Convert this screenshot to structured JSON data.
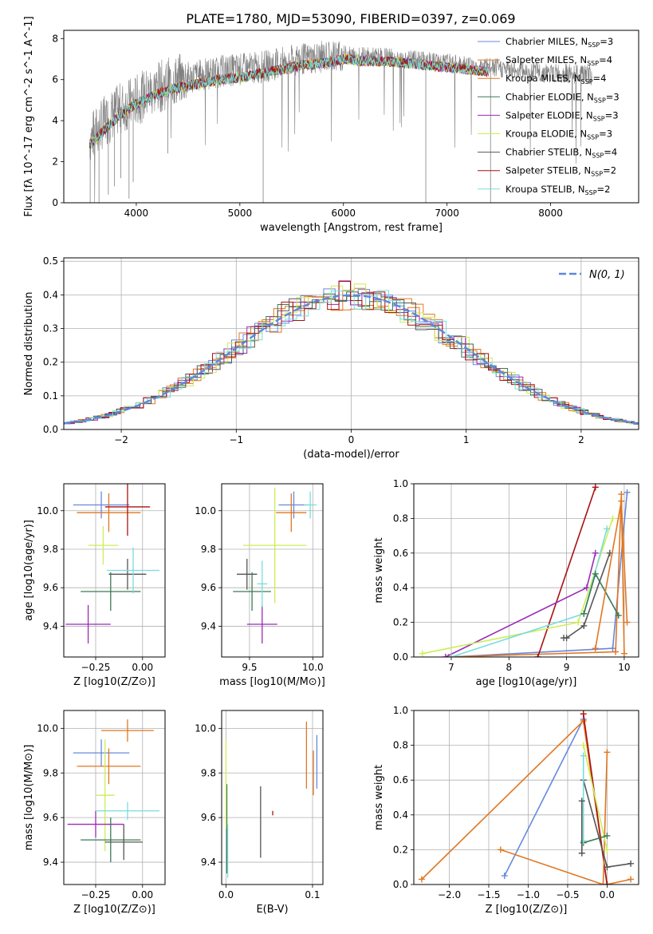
{
  "figure": {
    "title": "PLATE=1780, MJD=53090, FIBERID=0397, z=0.069"
  },
  "legend_colors": [
    "#6688dd",
    "#e07722",
    "#e07722",
    "#3a7a55",
    "#9a2ab8",
    "#ccee55",
    "#555555",
    "#aa1111",
    "#77dddd"
  ],
  "legend_labels": [
    "Chabrier MILES, N_SSP=3",
    "Salpeter MILES, N_SSP=4",
    "Kroupa MILES, N_SSP=4",
    "Chabrier ELODIE, N_SSP=3",
    "Salpeter ELODIE, N_SSP=3",
    "Kroupa ELODIE, N_SSP=3",
    "Chabrier STELIB, N_SSP=4",
    "Salpeter STELIB, N_SSP=2",
    "Kroupa STELIB, N_SSP=2"
  ],
  "chart_data": [
    {
      "id": "spectrum",
      "type": "line",
      "xlabel": "wavelength [Angstrom, rest frame]",
      "ylabel": "Flux [fλ 10^-17 erg cm^-2 s^-1 A^-1]",
      "xlim": [
        3300,
        8850
      ],
      "ylim": [
        0,
        8.4
      ],
      "xticks": [
        4000,
        5000,
        6000,
        7000,
        8000
      ],
      "yticks": [
        0,
        2,
        4,
        6,
        8
      ],
      "data_color": "#808080",
      "data_x": [
        3550,
        3700,
        3850,
        4000,
        4200,
        4400,
        4600,
        4800,
        5000,
        5200,
        5400,
        5600,
        5800,
        6000,
        6200,
        6400,
        6600,
        6800,
        7000,
        7200,
        7400,
        7600,
        7800,
        8000,
        8200,
        8400
      ],
      "data_y": [
        3.1,
        4.0,
        4.6,
        5.0,
        5.6,
        6.0,
        6.2,
        6.4,
        6.5,
        6.6,
        6.8,
        7.0,
        7.1,
        7.2,
        7.1,
        7.1,
        7.0,
        6.9,
        6.8,
        6.7,
        6.6,
        6.5,
        6.4,
        6.3,
        6.3,
        6.2
      ],
      "model_x": [
        3550,
        3700,
        3850,
        4000,
        4200,
        4400,
        4600,
        4800,
        5000,
        5200,
        5400,
        5600,
        5800,
        6000,
        6200,
        6400,
        6600,
        6800,
        7000,
        7200,
        7400
      ],
      "model_y": [
        2.8,
        3.6,
        4.3,
        4.8,
        5.3,
        5.6,
        5.8,
        6.0,
        6.1,
        6.3,
        6.5,
        6.7,
        6.8,
        7.0,
        6.9,
        6.9,
        6.8,
        6.7,
        6.6,
        6.5,
        6.4
      ],
      "legend_loc": "right"
    },
    {
      "id": "residuals",
      "type": "line",
      "xlabel": "(data-model)/error",
      "ylabel": "Normed distribution",
      "xlim": [
        -2.5,
        2.5
      ],
      "ylim": [
        0,
        0.51
      ],
      "xticks": [
        -2,
        -1,
        0,
        1,
        2
      ],
      "yticks": [
        0.0,
        0.1,
        0.2,
        0.3,
        0.4,
        0.5
      ],
      "legend": "N(0, 1)",
      "legend_loc": "top-right",
      "gaussian_color": "#5a88dd"
    },
    {
      "id": "age-vs-Z",
      "type": "scatter",
      "xlabel": "Z [log10(Z/Z⊙)]",
      "ylabel": "age [log10(age/yr)]",
      "xlim": [
        -0.42,
        0.12
      ],
      "ylim": [
        9.24,
        10.14
      ],
      "xticks": [
        -0.25,
        0.0
      ],
      "yticks": [
        9.4,
        9.6,
        9.8,
        10.0
      ],
      "points": [
        {
          "x": -0.22,
          "y": 10.03,
          "xerr": 0.15,
          "yerr": 0.07,
          "c": 0
        },
        {
          "x": -0.18,
          "y": 9.99,
          "xerr": 0.17,
          "yerr": 0.1,
          "c": 1
        },
        {
          "x": -0.08,
          "y": 10.02,
          "xerr": 0.12,
          "yerr": 0.15,
          "c": 7
        },
        {
          "x": -0.21,
          "y": 9.82,
          "xerr": 0.08,
          "yerr": 0.1,
          "c": 5
        },
        {
          "x": -0.29,
          "y": 9.41,
          "xerr": 0.12,
          "yerr": 0.1,
          "c": 4
        },
        {
          "x": -0.08,
          "y": 9.67,
          "xerr": 0.1,
          "yerr": 0.08,
          "c": 6
        },
        {
          "x": -0.17,
          "y": 9.58,
          "xerr": 0.16,
          "yerr": 0.1,
          "c": 3
        },
        {
          "x": -0.05,
          "y": 9.69,
          "xerr": 0.14,
          "yerr": 0.12,
          "c": 8
        }
      ]
    },
    {
      "id": "age-vs-mass",
      "type": "scatter",
      "xlabel": "mass [log10(M/M⊙)]",
      "ylabel": "",
      "xlim": [
        9.28,
        10.08
      ],
      "ylim": [
        9.24,
        10.14
      ],
      "xticks": [
        9.5,
        10.0
      ],
      "yticks": [
        9.4,
        9.6,
        9.8,
        10.0
      ],
      "points": [
        {
          "x": 9.85,
          "y": 10.03,
          "xerr": 0.12,
          "yerr": 0.07,
          "c": 0
        },
        {
          "x": 9.83,
          "y": 9.99,
          "xerr": 0.12,
          "yerr": 0.1,
          "c": 1
        },
        {
          "x": 9.98,
          "y": 10.03,
          "xerr": 0.05,
          "yerr": 0.07,
          "c": 8
        },
        {
          "x": 9.7,
          "y": 9.82,
          "xerr": 0.25,
          "yerr": 0.3,
          "c": 5
        },
        {
          "x": 9.6,
          "y": 9.41,
          "xerr": 0.12,
          "yerr": 0.1,
          "c": 4
        },
        {
          "x": 9.48,
          "y": 9.67,
          "xerr": 0.08,
          "yerr": 0.08,
          "c": 6
        },
        {
          "x": 9.52,
          "y": 9.58,
          "xerr": 0.15,
          "yerr": 0.1,
          "c": 3
        },
        {
          "x": 9.6,
          "y": 9.62,
          "xerr": 0.04,
          "yerr": 0.12,
          "c": 8
        }
      ]
    },
    {
      "id": "weight-vs-age",
      "type": "line",
      "xlabel": "age [log10(age/yr)]",
      "ylabel": "mass weight",
      "xlim": [
        6.35,
        10.25
      ],
      "ylim": [
        0.0,
        1.0
      ],
      "xticks": [
        7,
        8,
        9,
        10
      ],
      "yticks": [
        0.0,
        0.2,
        0.4,
        0.6,
        0.8,
        1.0
      ],
      "series": [
        {
          "c": 0,
          "x": [
            7.0,
            9.8,
            10.05
          ],
          "y": [
            0.0,
            0.05,
            0.95
          ]
        },
        {
          "c": 1,
          "x": [
            6.95,
            9.85,
            9.95,
            10.0
          ],
          "y": [
            0.0,
            0.03,
            0.94,
            0.02
          ]
        },
        {
          "c": 7,
          "x": [
            8.5,
            9.5
          ],
          "y": [
            0.0,
            0.98
          ]
        },
        {
          "c": 4,
          "x": [
            6.9,
            9.35,
            9.5
          ],
          "y": [
            0.0,
            0.4,
            0.6
          ]
        },
        {
          "c": 5,
          "x": [
            6.5,
            9.2,
            9.8
          ],
          "y": [
            0.02,
            0.2,
            0.8
          ]
        },
        {
          "c": 8,
          "x": [
            7.0,
            9.3,
            9.7
          ],
          "y": [
            0.0,
            0.25,
            0.74
          ]
        },
        {
          "c": 3,
          "x": [
            9.3,
            9.5,
            9.9
          ],
          "y": [
            0.25,
            0.48,
            0.24
          ]
        },
        {
          "c": 6,
          "x": [
            8.95,
            9.0,
            9.3,
            9.75
          ],
          "y": [
            0.11,
            0.11,
            0.18,
            0.6
          ]
        },
        {
          "c": 2,
          "x": [
            9.5,
            9.95,
            10.05
          ],
          "y": [
            0.05,
            0.9,
            0.2
          ]
        }
      ]
    },
    {
      "id": "mass-vs-Z",
      "type": "scatter",
      "xlabel": "Z [log10(Z/Z⊙)]",
      "ylabel": "mass [log10(M/M⊙)]",
      "xlim": [
        -0.42,
        0.12
      ],
      "ylim": [
        9.3,
        10.08
      ],
      "xticks": [
        -0.25,
        0.0
      ],
      "yticks": [
        9.4,
        9.6,
        9.8,
        10.0
      ],
      "points": [
        {
          "x": -0.22,
          "y": 9.89,
          "xerr": 0.15,
          "yerr": 0.06,
          "c": 0
        },
        {
          "x": -0.18,
          "y": 9.83,
          "xerr": 0.17,
          "yerr": 0.08,
          "c": 1
        },
        {
          "x": -0.08,
          "y": 9.99,
          "xerr": 0.14,
          "yerr": 0.05,
          "c": 2
        },
        {
          "x": -0.2,
          "y": 9.7,
          "xerr": 0.05,
          "yerr": 0.25,
          "c": 5
        },
        {
          "x": -0.25,
          "y": 9.57,
          "xerr": 0.15,
          "yerr": 0.06,
          "c": 4
        },
        {
          "x": -0.08,
          "y": 9.63,
          "xerr": 0.17,
          "yerr": 0.04,
          "c": 8
        },
        {
          "x": -0.17,
          "y": 9.5,
          "xerr": 0.16,
          "yerr": 0.1,
          "c": 3
        },
        {
          "x": -0.1,
          "y": 9.49,
          "xerr": 0.1,
          "yerr": 0.08,
          "c": 6
        }
      ]
    },
    {
      "id": "mass-vs-EBV",
      "type": "scatter",
      "xlabel": "E(B-V)",
      "ylabel": "",
      "xlim": [
        -0.005,
        0.112
      ],
      "ylim": [
        9.3,
        10.08
      ],
      "xticks": [
        0.0,
        0.1
      ],
      "yticks": [
        9.4,
        9.6,
        9.8,
        10.0
      ],
      "points": [
        {
          "x": 0.105,
          "y": 9.85,
          "xerr": 0.0,
          "yerr": 0.12,
          "c": 0
        },
        {
          "x": 0.101,
          "y": 9.8,
          "xerr": 0.0,
          "yerr": 0.1,
          "c": 1
        },
        {
          "x": 0.093,
          "y": 9.88,
          "xerr": 0.0,
          "yerr": 0.15,
          "c": 2
        },
        {
          "x": 0.04,
          "y": 9.58,
          "xerr": 0.0,
          "yerr": 0.16,
          "c": 6
        },
        {
          "x": 0.054,
          "y": 9.62,
          "xerr": 0.0,
          "yerr": 0.01,
          "c": 7
        },
        {
          "x": 0.001,
          "y": 9.55,
          "xerr": 0.0,
          "yerr": 0.2,
          "c": 3
        },
        {
          "x": 0.0,
          "y": 9.75,
          "xerr": 0.0,
          "yerr": 0.2,
          "c": 5
        },
        {
          "x": 0.002,
          "y": 9.45,
          "xerr": 0.0,
          "yerr": 0.12,
          "c": 8
        }
      ]
    },
    {
      "id": "weight-vs-Z",
      "type": "line",
      "xlabel": "Z [log10(Z/Z⊙)]",
      "ylabel": "mass weight",
      "xlim": [
        -2.45,
        0.4
      ],
      "ylim": [
        0.0,
        1.0
      ],
      "xticks": [
        -2.0,
        -1.5,
        -1.0,
        -0.5,
        0.0
      ],
      "yticks": [
        0.0,
        0.2,
        0.4,
        0.6,
        0.8,
        1.0
      ],
      "series": [
        {
          "c": 0,
          "x": [
            -1.3,
            -0.3,
            0.0
          ],
          "y": [
            0.05,
            0.95,
            0.0
          ]
        },
        {
          "c": 1,
          "x": [
            -2.35,
            -0.3,
            0.0,
            0.3
          ],
          "y": [
            0.03,
            0.94,
            0.0,
            0.03
          ]
        },
        {
          "c": 7,
          "x": [
            -0.3,
            0.0
          ],
          "y": [
            0.98,
            0.0
          ]
        },
        {
          "c": 2,
          "x": [
            -1.35,
            -0.05,
            0.0
          ],
          "y": [
            0.2,
            0.0,
            0.76
          ]
        },
        {
          "c": 5,
          "x": [
            -0.3,
            0.0
          ],
          "y": [
            0.8,
            0.2
          ]
        },
        {
          "c": 6,
          "x": [
            -0.3,
            0.0,
            0.3
          ],
          "y": [
            0.6,
            0.1,
            0.12
          ]
        },
        {
          "c": 3,
          "x": [
            -0.3,
            0.0
          ],
          "y": [
            0.24,
            0.28
          ]
        },
        {
          "c": 8,
          "x": [
            -0.3,
            -0.3
          ],
          "y": [
            0.74,
            0.25
          ]
        },
        {
          "c": 6,
          "x": [
            -0.32,
            -0.32
          ],
          "y": [
            0.48,
            0.18
          ]
        }
      ]
    }
  ]
}
